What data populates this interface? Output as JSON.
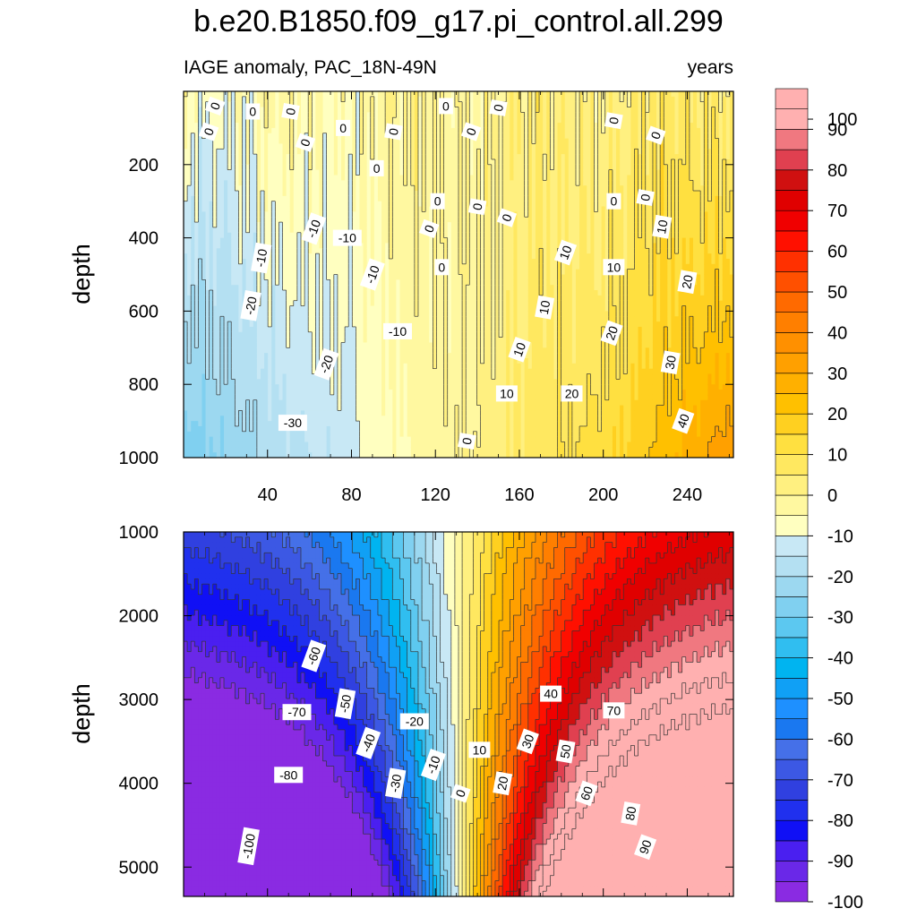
{
  "chart_data": {
    "type": "contour",
    "title": "b.e20.B1850.f09_g17.pi_control.all.299",
    "subtitle_left": "IAGE anomaly, PAC_18N-49N",
    "subtitle_right": "years",
    "xlabel": "",
    "ylabel": "depth",
    "xlim": [
      0,
      262
    ],
    "x_ticks": [
      40,
      80,
      120,
      160,
      200,
      240
    ],
    "x_tick_labels": [
      "40",
      "80",
      "120",
      "160",
      "200",
      "240"
    ],
    "panels": [
      {
        "name": "upper",
        "ylim": [
          0,
          1000
        ],
        "y_inverted": true,
        "y_ticks": [
          200,
          400,
          600,
          800,
          1000
        ],
        "y_tick_labels": [
          "200",
          "400",
          "600",
          "800",
          "1000"
        ],
        "contour_labels": [
          {
            "text": "0",
            "x": 15,
            "y": 40
          },
          {
            "text": "0",
            "x": 33,
            "y": 55
          },
          {
            "text": "0",
            "x": 51,
            "y": 55
          },
          {
            "text": "0",
            "x": 12,
            "y": 110
          },
          {
            "text": "0",
            "x": 76,
            "y": 100
          },
          {
            "text": "0",
            "x": 100,
            "y": 110
          },
          {
            "text": "0",
            "x": 58,
            "y": 140
          },
          {
            "text": "0",
            "x": 125,
            "y": 40
          },
          {
            "text": "0",
            "x": 150,
            "y": 45
          },
          {
            "text": "0",
            "x": 137,
            "y": 110
          },
          {
            "text": "0",
            "x": 92,
            "y": 210
          },
          {
            "text": "0",
            "x": 205,
            "y": 80
          },
          {
            "text": "0",
            "x": 225,
            "y": 120
          },
          {
            "text": "0",
            "x": 121,
            "y": 300
          },
          {
            "text": "0",
            "x": 140,
            "y": 315
          },
          {
            "text": "0",
            "x": 154,
            "y": 345
          },
          {
            "text": "0",
            "x": 205,
            "y": 300
          },
          {
            "text": "0",
            "x": 220,
            "y": 290
          },
          {
            "text": "0",
            "x": 117,
            "y": 375
          },
          {
            "text": "0",
            "x": 123,
            "y": 480
          },
          {
            "text": "0",
            "x": 135,
            "y": 955
          },
          {
            "text": "-10",
            "x": 62,
            "y": 375
          },
          {
            "text": "-10",
            "x": 78,
            "y": 400
          },
          {
            "text": "-10",
            "x": 37,
            "y": 455
          },
          {
            "text": "-10",
            "x": 90,
            "y": 500
          },
          {
            "text": "-10",
            "x": 102,
            "y": 655
          },
          {
            "text": "-20",
            "x": 32,
            "y": 585
          },
          {
            "text": "-20",
            "x": 68,
            "y": 745
          },
          {
            "text": "-30",
            "x": 52,
            "y": 905
          },
          {
            "text": "10",
            "x": 228,
            "y": 370
          },
          {
            "text": "10",
            "x": 182,
            "y": 440
          },
          {
            "text": "10",
            "x": 205,
            "y": 480
          },
          {
            "text": "10",
            "x": 172,
            "y": 590
          },
          {
            "text": "10",
            "x": 160,
            "y": 705
          },
          {
            "text": "10",
            "x": 154,
            "y": 825
          },
          {
            "text": "20",
            "x": 240,
            "y": 520
          },
          {
            "text": "20",
            "x": 204,
            "y": 660
          },
          {
            "text": "20",
            "x": 185,
            "y": 825
          },
          {
            "text": "30",
            "x": 232,
            "y": 740
          },
          {
            "text": "40",
            "x": 238,
            "y": 900
          }
        ]
      },
      {
        "name": "lower",
        "ylim": [
          1000,
          5350
        ],
        "y_inverted": true,
        "y_ticks": [
          1000,
          2000,
          3000,
          4000,
          5000
        ],
        "y_tick_labels": [
          "1000",
          "2000",
          "3000",
          "4000",
          "5000"
        ],
        "contour_labels": [
          {
            "text": "-60",
            "x": 62,
            "y": 2480
          },
          {
            "text": "-70",
            "x": 54,
            "y": 3150
          },
          {
            "text": "-50",
            "x": 77,
            "y": 3050
          },
          {
            "text": "-40",
            "x": 88,
            "y": 3520
          },
          {
            "text": "-20",
            "x": 110,
            "y": 3260
          },
          {
            "text": "-30",
            "x": 101,
            "y": 4000
          },
          {
            "text": "-10",
            "x": 119,
            "y": 3780
          },
          {
            "text": "-80",
            "x": 50,
            "y": 3900
          },
          {
            "text": "-100",
            "x": 31,
            "y": 4750
          },
          {
            "text": "0",
            "x": 132,
            "y": 4120
          },
          {
            "text": "10",
            "x": 141,
            "y": 3600
          },
          {
            "text": "20",
            "x": 152,
            "y": 4000
          },
          {
            "text": "30",
            "x": 164,
            "y": 3500
          },
          {
            "text": "40",
            "x": 175,
            "y": 2930
          },
          {
            "text": "50",
            "x": 182,
            "y": 3620
          },
          {
            "text": "60",
            "x": 192,
            "y": 4120
          },
          {
            "text": "70",
            "x": 205,
            "y": 3130
          },
          {
            "text": "80",
            "x": 213,
            "y": 4360
          },
          {
            "text": "90",
            "x": 220,
            "y": 4760
          }
        ]
      }
    ],
    "colorbar": {
      "levels": [
        -100,
        -95,
        -90,
        -85,
        -80,
        -75,
        -70,
        -65,
        -60,
        -55,
        -50,
        -45,
        -40,
        -35,
        -30,
        -25,
        -20,
        -15,
        -10,
        -5,
        0,
        5,
        10,
        15,
        20,
        25,
        30,
        35,
        40,
        45,
        50,
        55,
        60,
        65,
        70,
        75,
        80,
        85,
        90,
        95,
        100
      ],
      "tick_labels": [
        "-100",
        "-90",
        "-80",
        "-70",
        "-60",
        "-50",
        "-40",
        "-30",
        "-20",
        "-10",
        "0",
        "10",
        "20",
        "30",
        "40",
        "50",
        "60",
        "70",
        "80",
        "90",
        "100"
      ],
      "colors": [
        "#8a2be2",
        "#6a28e8",
        "#4a1ff0",
        "#1010f5",
        "#2030ee",
        "#3040e0",
        "#3c58e4",
        "#4570e8",
        "#1a78f0",
        "#1e90ff",
        "#10a0f5",
        "#00b4f0",
        "#30bef0",
        "#5cc8f0",
        "#80d0f0",
        "#9cd8f0",
        "#b4e0f2",
        "#c8e8f5",
        "#ffffc0",
        "#fff8a0",
        "#fff080",
        "#ffe860",
        "#ffe040",
        "#ffd020",
        "#ffc000",
        "#ffb000",
        "#ffa000",
        "#ff9000",
        "#ff7f00",
        "#ff6a00",
        "#ff5000",
        "#ff3000",
        "#ff1000",
        "#f00000",
        "#e00000",
        "#d01010",
        "#e04050",
        "#f07880",
        "#ffb0b0",
        "#ffb0b0"
      ]
    }
  }
}
